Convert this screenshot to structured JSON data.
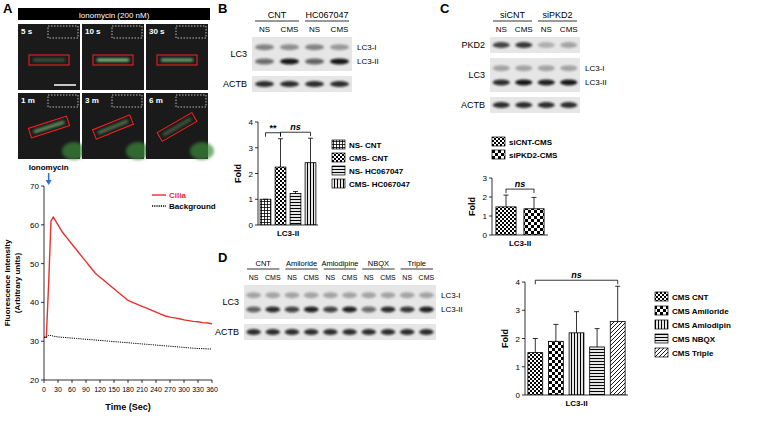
{
  "chart_data": [
    {
      "type": "line",
      "x_label": "Time (Sec)",
      "y_label": [
        "Fluorescence Intensity",
        "(Arbitrary units)"
      ],
      "x": [
        0,
        5,
        10,
        15,
        20,
        30,
        40,
        50,
        60,
        70,
        80,
        90,
        100,
        110,
        120,
        130,
        140,
        150,
        160,
        170,
        180,
        190,
        200,
        210,
        220,
        230,
        240,
        250,
        260,
        270,
        280,
        290,
        300,
        310,
        320,
        330,
        340,
        350,
        360
      ],
      "series": [
        {
          "name": "Cilia",
          "color": "#e8302a",
          "line_style": "solid",
          "values": [
            31,
            31,
            45,
            61,
            62,
            60,
            58,
            56.5,
            55,
            53.5,
            52,
            50.5,
            49,
            47.5,
            46.5,
            45.5,
            44.5,
            43.5,
            42.5,
            41.5,
            40.5,
            40,
            39.5,
            39,
            38.5,
            38,
            37.5,
            37,
            36.5,
            36.2,
            36,
            35.8,
            35.5,
            35.3,
            35.1,
            35,
            34.8,
            34.7,
            34.5
          ]
        },
        {
          "name": "Background",
          "color": "#000000",
          "line_style": "dotted",
          "values": [
            31,
            31,
            31.5,
            31.5,
            31.3,
            31.1,
            31,
            30.9,
            30.8,
            30.7,
            30.6,
            30.5,
            30.4,
            30.3,
            30.2,
            30.1,
            30,
            29.9,
            29.8,
            29.7,
            29.6,
            29.5,
            29.4,
            29.3,
            29.2,
            29.1,
            29,
            28.9,
            28.8,
            28.7,
            28.6,
            28.5,
            28.4,
            28.3,
            28.2,
            28.1,
            28.1,
            28,
            28
          ]
        }
      ],
      "xlim": [
        0,
        360
      ],
      "xticks": [
        0,
        30,
        60,
        90,
        120,
        150,
        180,
        210,
        240,
        270,
        300,
        330,
        360
      ],
      "ylim": [
        20,
        70
      ],
      "yticks": [
        20,
        30,
        40,
        50,
        60,
        70
      ],
      "legend": "top-right",
      "annotations": [
        {
          "text": "Ionomycin",
          "x": 10,
          "color": "#2d6fe0"
        }
      ]
    },
    {
      "type": "bar",
      "categories": [
        "NS- CNT",
        "CMS- CNT",
        "NS- HC067047",
        "CMS- HC067047"
      ],
      "values": [
        1,
        2.25,
        1.22,
        2.42
      ],
      "errors": [
        0,
        1.1,
        0.08,
        0.95
      ],
      "color": "#000000",
      "ylim": [
        0,
        4
      ],
      "yticks": [
        0,
        1,
        2,
        3,
        4
      ],
      "y_label": "Fold",
      "x_label": "LC3-II",
      "legend": "right",
      "tick_labels": "y",
      "annotations": [
        {
          "text": "**",
          "between": [
            "NS- CNT",
            "CMS- CNT"
          ]
        },
        {
          "text": "ns",
          "between": [
            "CMS- CNT",
            "CMS- HC067047"
          ]
        }
      ]
    },
    {
      "type": "bar",
      "categories": [
        "siCNT-CMS",
        "siPKD2-CMS"
      ],
      "values": [
        1.48,
        1.38
      ],
      "errors": [
        0.62,
        0.6
      ],
      "color": "#000000",
      "ylim": [
        0,
        3
      ],
      "yticks": [
        0,
        1,
        2,
        3
      ],
      "y_label": "Fold",
      "x_label": "LC3-II",
      "legend": "top",
      "tick_labels": "y",
      "annotations": [
        {
          "text": "ns",
          "between": [
            "siCNT-CMS",
            "siPKD2-CMS"
          ]
        }
      ]
    },
    {
      "type": "bar",
      "categories": [
        "CMS CNT",
        "CMS Amiloride",
        "CMS Amlodipin",
        "CMS NBQX",
        "CMS Triple"
      ],
      "values": [
        1.5,
        1.9,
        2.2,
        1.7,
        2.6
      ],
      "errors": [
        0.5,
        0.6,
        0.75,
        0.65,
        1.25
      ],
      "color": "#000000",
      "ylim": [
        0,
        4
      ],
      "yticks": [
        0,
        1,
        2,
        3,
        4
      ],
      "y_label": "Fold",
      "x_label": "LC3-II",
      "legend": "right",
      "tick_labels": "y",
      "annotations": [
        {
          "text": "ns",
          "between": [
            "CMS CNT",
            "CMS Triple"
          ]
        }
      ]
    }
  ],
  "figure": {
    "panel_labels": [
      "A",
      "B",
      "C",
      "D"
    ],
    "panel_a": {
      "treatment": "Ionomycin (200 nM)",
      "frames": [
        "5 s",
        "10 s",
        "30 s",
        "1 m",
        "3 m",
        "6 m"
      ]
    },
    "blots": [
      {
        "groups": [
          "CNT",
          "HC067047"
        ],
        "lanes": [
          "NS",
          "CMS",
          "NS",
          "CMS"
        ],
        "rows": [
          {
            "label": "LC3",
            "bands": [
              "LC3-I",
              "LC3-II"
            ]
          },
          {
            "label": "ACTB",
            "bands": []
          }
        ]
      },
      {
        "groups": [
          "siCNT",
          "siPKD2"
        ],
        "lanes": [
          "NS",
          "CMS",
          "NS",
          "CMS"
        ],
        "rows": [
          {
            "label": "PKD2",
            "bands": []
          },
          {
            "label": "LC3",
            "bands": [
              "LC3-I",
              "LC3-II"
            ]
          },
          {
            "label": "ACTB",
            "bands": []
          }
        ]
      },
      {
        "groups": [
          "CNT",
          "Amiloride",
          "Amlodipine",
          "NBQX",
          "Triple"
        ],
        "lanes": [
          "NS",
          "CMS",
          "NS",
          "CMS",
          "NS",
          "CMS",
          "NS",
          "CMS",
          "NS",
          "CMS"
        ],
        "rows": [
          {
            "label": "LC3",
            "bands": [
              "LC3-I",
              "LC3-II"
            ]
          },
          {
            "label": "ACTB",
            "bands": []
          }
        ]
      }
    ]
  }
}
